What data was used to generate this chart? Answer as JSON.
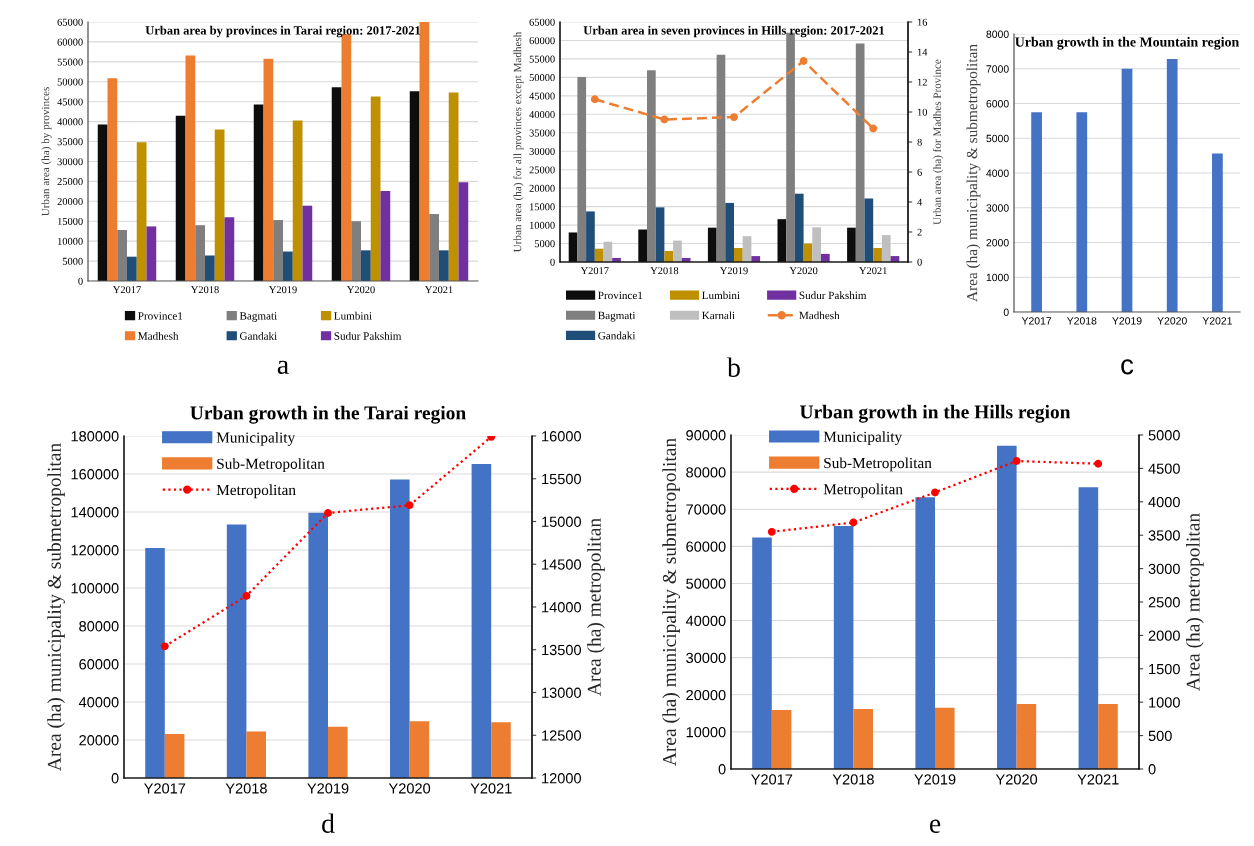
{
  "chart_data": [
    {
      "type": "bar",
      "title": "Urban area by provinces in Tarai region: 2017-2021",
      "ylabel": "Urban area (ha) by provinces",
      "categories": [
        "Y2017",
        "Y2018",
        "Y2019",
        "Y2020",
        "Y2021"
      ],
      "ylim": [
        0,
        65000
      ],
      "yticks": [
        0,
        5000,
        10000,
        15000,
        20000,
        25000,
        30000,
        35000,
        40000,
        45000,
        50000,
        55000,
        60000,
        65000
      ],
      "grid": "y",
      "legend": "bottom",
      "annotations": [
        "a"
      ],
      "series": [
        {
          "name": "Province1",
          "color": "#0d0d0d",
          "values": [
            39300,
            41500,
            44300,
            48600,
            47600
          ]
        },
        {
          "name": "Madhesh",
          "color": "#ed7d31",
          "values": [
            50900,
            56600,
            55800,
            61900,
            65000
          ]
        },
        {
          "name": "Bagmati",
          "color": "#7f7f7f",
          "values": [
            12800,
            14000,
            15300,
            15000,
            16800
          ]
        },
        {
          "name": "Gandaki",
          "color": "#1f4e79",
          "values": [
            6100,
            6400,
            7400,
            7700,
            7700
          ]
        },
        {
          "name": "Lumbini",
          "color": "#bf9000",
          "values": [
            34800,
            38000,
            40300,
            46300,
            47300
          ]
        },
        {
          "name": "Sudur Pakshim",
          "color": "#7030a0",
          "values": [
            13700,
            16000,
            18900,
            22600,
            24800
          ]
        }
      ]
    },
    {
      "type": "bar",
      "title": "Urban area in seven provinces in Hills region: 2017-2021",
      "ylabel": "Urban area (ha) for all provinces except Madhesh",
      "y2label": "Urban area (ha) for Madhes Province",
      "categories": [
        "Y2017",
        "Y2018",
        "Y2019",
        "Y2020",
        "Y2021"
      ],
      "ylim": [
        0,
        65000
      ],
      "yticks": [
        0,
        5000,
        10000,
        15000,
        20000,
        25000,
        30000,
        35000,
        40000,
        45000,
        50000,
        55000,
        60000,
        65000
      ],
      "y2lim": [
        0,
        16
      ],
      "y2ticks": [
        0,
        2,
        4,
        6,
        8,
        10,
        12,
        14,
        16
      ],
      "grid": "y",
      "legend": "bottom",
      "annotations": [
        "b"
      ],
      "series": [
        {
          "name": "Province1",
          "color": "#0d0d0d",
          "values": [
            8000,
            8800,
            9300,
            11600,
            9300
          ]
        },
        {
          "name": "Bagmati",
          "color": "#7f7f7f",
          "values": [
            50100,
            51900,
            56100,
            62100,
            59200
          ]
        },
        {
          "name": "Gandaki",
          "color": "#1f4e79",
          "values": [
            13700,
            14800,
            16000,
            18500,
            17200
          ]
        },
        {
          "name": "Lumbini",
          "color": "#bf9000",
          "values": [
            3600,
            3000,
            3800,
            5000,
            3800
          ]
        },
        {
          "name": "Karnali",
          "color": "#bfbfbf",
          "values": [
            5500,
            5800,
            7000,
            9400,
            7300
          ]
        },
        {
          "name": "Sudur Pakshim",
          "color": "#7030a0",
          "values": [
            1100,
            1100,
            1600,
            2200,
            1600
          ]
        },
        {
          "name": "Madhesh",
          "color": "#ed7d31",
          "type": "line",
          "axis": "y2",
          "line_style": "dashed",
          "marker": "circle",
          "values": [
            10.85,
            9.5,
            9.66,
            13.4,
            8.9
          ]
        }
      ]
    },
    {
      "type": "bar",
      "title": "Urban growth in the Mountain region",
      "ylabel": "Area (ha) municipality & submetropolitan",
      "categories": [
        "Y2017",
        "Y2018",
        "Y2019",
        "Y2020",
        "Y2021"
      ],
      "ylim": [
        0,
        8000
      ],
      "yticks": [
        0,
        1000,
        2000,
        3000,
        4000,
        5000,
        6000,
        7000,
        8000
      ],
      "grid": "y",
      "annotations": [
        "c"
      ],
      "series": [
        {
          "color": "#4472c4",
          "values": [
            5750,
            5750,
            7000,
            7280,
            4560
          ]
        }
      ]
    },
    {
      "type": "bar",
      "title": "Urban growth in the Tarai region",
      "ylabel": "Area (ha) municipality & submetropolitan",
      "y2label": "Area (ha) metropolitan",
      "categories": [
        "Y2017",
        "Y2018",
        "Y2019",
        "Y2020",
        "Y2021"
      ],
      "ylim": [
        0,
        180000
      ],
      "yticks": [
        0,
        20000,
        40000,
        60000,
        80000,
        100000,
        120000,
        140000,
        160000,
        180000
      ],
      "y2lim": [
        12000,
        16000
      ],
      "y2ticks": [
        12000,
        12500,
        13000,
        13500,
        14000,
        14500,
        15000,
        15500,
        16000
      ],
      "grid": "y",
      "legend": "top left",
      "annotations": [
        "d"
      ],
      "series": [
        {
          "name": "Municipality",
          "color": "#4472c4",
          "values": [
            121000,
            133400,
            139600,
            157100,
            165200
          ]
        },
        {
          "name": "Sub-Metropolitan",
          "color": "#ed7d31",
          "values": [
            23100,
            24500,
            27000,
            29900,
            29300
          ]
        },
        {
          "name": "Metropolitan",
          "color": "#ff0000",
          "type": "line",
          "axis": "y2",
          "line_style": "dotted",
          "marker": "circle",
          "values": [
            13540,
            14130,
            15100,
            15190,
            15990
          ]
        }
      ]
    },
    {
      "type": "bar",
      "title": "Urban growth in the Hills region",
      "ylabel": "Area (ha) municipality & submetropolitan",
      "y2label": "Area (ha) metropolitan",
      "categories": [
        "Y2017",
        "Y2018",
        "Y2019",
        "Y2020",
        "Y2021"
      ],
      "ylim": [
        0,
        90000
      ],
      "yticks": [
        0,
        10000,
        20000,
        30000,
        40000,
        50000,
        60000,
        70000,
        80000,
        90000
      ],
      "y2lim": [
        0,
        5000
      ],
      "y2ticks": [
        0,
        500,
        1000,
        1500,
        2000,
        2500,
        3000,
        3500,
        4000,
        4500,
        5000
      ],
      "grid": "y",
      "legend": "top left",
      "annotations": [
        "e"
      ],
      "series": [
        {
          "name": "Municipality",
          "color": "#4472c4",
          "values": [
            62400,
            65500,
            73200,
            87100,
            75900
          ]
        },
        {
          "name": "Sub-Metropolitan",
          "color": "#ed7d31",
          "values": [
            15900,
            16200,
            16500,
            17500,
            17500
          ]
        },
        {
          "name": "Metropolitan",
          "color": "#ff0000",
          "type": "line",
          "axis": "y2",
          "line_style": "dotted",
          "marker": "circle",
          "values": [
            3550,
            3690,
            4140,
            4610,
            4570
          ]
        }
      ]
    }
  ]
}
